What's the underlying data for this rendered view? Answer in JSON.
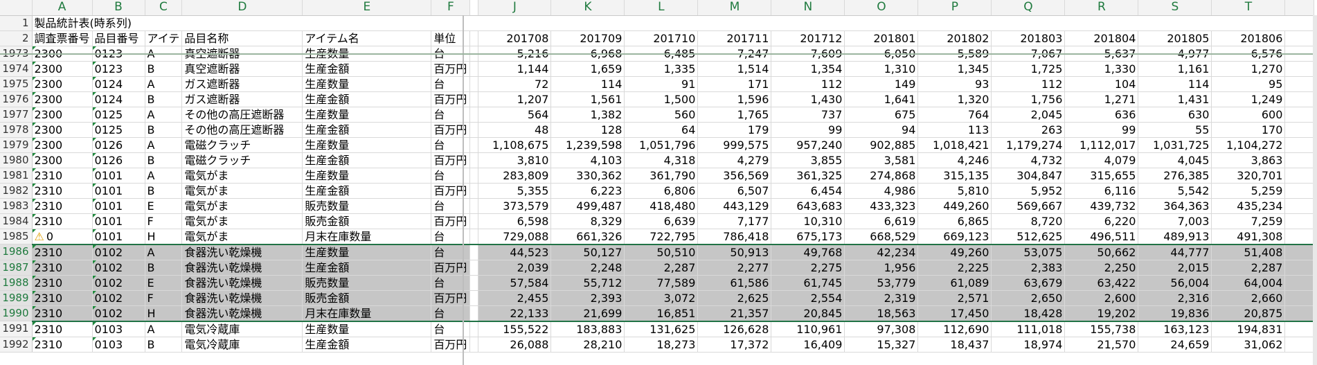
{
  "col_headers": [
    "A",
    "B",
    "C",
    "D",
    "E",
    "F",
    "J",
    "K",
    "L",
    "M",
    "N",
    "O",
    "P",
    "Q",
    "R",
    "S",
    "T"
  ],
  "title_row": {
    "num": "1",
    "text": "製品統計表(時系列)"
  },
  "header_row": {
    "num": "2",
    "cells": [
      "調査票番号",
      "品目番号",
      "アイテ",
      "品目名称",
      "アイテム名",
      "単位",
      "201708",
      "201709",
      "201710",
      "201711",
      "201712",
      "201801",
      "201802",
      "201803",
      "201804",
      "201805",
      "201806"
    ]
  },
  "rows": [
    {
      "num": "1973",
      "a": "2300",
      "b": "0123",
      "c": "A",
      "d": "真空遮断器",
      "e": "生産数量",
      "f": "台",
      "vals": [
        "5,216",
        "6,968",
        "6,485",
        "7,247",
        "7,609",
        "6,050",
        "5,589",
        "7,067",
        "5,637",
        "4,977",
        "6,576"
      ]
    },
    {
      "num": "1974",
      "a": "2300",
      "b": "0123",
      "c": "B",
      "d": "真空遮断器",
      "e": "生産金額",
      "f": "百万円",
      "vals": [
        "1,144",
        "1,659",
        "1,335",
        "1,514",
        "1,354",
        "1,310",
        "1,345",
        "1,725",
        "1,330",
        "1,161",
        "1,270"
      ]
    },
    {
      "num": "1975",
      "a": "2300",
      "b": "0124",
      "c": "A",
      "d": "ガス遮断器",
      "e": "生産数量",
      "f": "台",
      "vals": [
        "72",
        "114",
        "91",
        "171",
        "112",
        "149",
        "93",
        "112",
        "104",
        "114",
        "95"
      ]
    },
    {
      "num": "1976",
      "a": "2300",
      "b": "0124",
      "c": "B",
      "d": "ガス遮断器",
      "e": "生産金額",
      "f": "百万円",
      "vals": [
        "1,207",
        "1,561",
        "1,500",
        "1,596",
        "1,430",
        "1,641",
        "1,320",
        "1,756",
        "1,271",
        "1,431",
        "1,249"
      ]
    },
    {
      "num": "1977",
      "a": "2300",
      "b": "0125",
      "c": "A",
      "d": "その他の高圧遮断器",
      "e": "生産数量",
      "f": "台",
      "vals": [
        "564",
        "1,382",
        "560",
        "1,765",
        "737",
        "675",
        "764",
        "2,045",
        "636",
        "630",
        "600"
      ]
    },
    {
      "num": "1978",
      "a": "2300",
      "b": "0125",
      "c": "B",
      "d": "その他の高圧遮断器",
      "e": "生産金額",
      "f": "百万円",
      "vals": [
        "48",
        "128",
        "64",
        "179",
        "99",
        "94",
        "113",
        "263",
        "99",
        "55",
        "170"
      ]
    },
    {
      "num": "1979",
      "a": "2300",
      "b": "0126",
      "c": "A",
      "d": "電磁クラッチ",
      "e": "生産数量",
      "f": "台",
      "vals": [
        "1,108,675",
        "1,239,598",
        "1,051,796",
        "999,575",
        "957,240",
        "902,885",
        "1,018,421",
        "1,179,274",
        "1,112,017",
        "1,031,725",
        "1,104,272"
      ]
    },
    {
      "num": "1980",
      "a": "2300",
      "b": "0126",
      "c": "B",
      "d": "電磁クラッチ",
      "e": "生産金額",
      "f": "百万円",
      "vals": [
        "3,810",
        "4,103",
        "4,318",
        "4,279",
        "3,855",
        "3,581",
        "4,246",
        "4,732",
        "4,079",
        "4,045",
        "3,863"
      ]
    },
    {
      "num": "1981",
      "a": "2310",
      "b": "0101",
      "c": "A",
      "d": "電気がま",
      "e": "生産数量",
      "f": "台",
      "vals": [
        "283,809",
        "330,362",
        "361,790",
        "356,569",
        "361,325",
        "274,868",
        "315,135",
        "304,847",
        "315,655",
        "276,385",
        "320,701"
      ]
    },
    {
      "num": "1982",
      "a": "2310",
      "b": "0101",
      "c": "B",
      "d": "電気がま",
      "e": "生産金額",
      "f": "百万円",
      "vals": [
        "5,355",
        "6,223",
        "6,806",
        "6,507",
        "6,454",
        "4,986",
        "5,810",
        "5,952",
        "6,116",
        "5,542",
        "5,259"
      ]
    },
    {
      "num": "1983",
      "a": "2310",
      "b": "0101",
      "c": "E",
      "d": "電気がま",
      "e": "販売数量",
      "f": "台",
      "vals": [
        "373,579",
        "499,487",
        "418,480",
        "443,129",
        "643,683",
        "433,323",
        "449,260",
        "569,667",
        "439,732",
        "364,363",
        "435,234"
      ]
    },
    {
      "num": "1984",
      "a": "2310",
      "b": "0101",
      "c": "F",
      "d": "電気がま",
      "e": "販売金額",
      "f": "百万円",
      "vals": [
        "6,598",
        "8,329",
        "6,639",
        "7,177",
        "10,310",
        "6,619",
        "6,865",
        "8,720",
        "6,220",
        "7,003",
        "7,259"
      ]
    },
    {
      "num": "1985",
      "a": "0",
      "b": "0101",
      "c": "H",
      "d": "電気がま",
      "e": "月末在庫数量",
      "f": "台",
      "warn": true,
      "vals": [
        "729,088",
        "661,326",
        "722,795",
        "786,418",
        "675,173",
        "668,529",
        "669,123",
        "512,625",
        "496,511",
        "489,913",
        "491,308"
      ]
    },
    {
      "num": "1986",
      "a": "2310",
      "b": "0102",
      "c": "A",
      "d": "食器洗い乾燥機",
      "e": "生産数量",
      "f": "台",
      "sel": true,
      "vals": [
        "44,523",
        "50,127",
        "50,510",
        "50,913",
        "49,768",
        "42,234",
        "49,260",
        "53,075",
        "50,662",
        "44,777",
        "51,408"
      ]
    },
    {
      "num": "1987",
      "a": "2310",
      "b": "0102",
      "c": "B",
      "d": "食器洗い乾燥機",
      "e": "生産金額",
      "f": "百万円",
      "sel": true,
      "vals": [
        "2,039",
        "2,248",
        "2,287",
        "2,277",
        "2,275",
        "1,956",
        "2,225",
        "2,383",
        "2,250",
        "2,015",
        "2,287"
      ]
    },
    {
      "num": "1988",
      "a": "2310",
      "b": "0102",
      "c": "E",
      "d": "食器洗い乾燥機",
      "e": "販売数量",
      "f": "台",
      "sel": true,
      "vals": [
        "57,584",
        "55,712",
        "77,589",
        "61,586",
        "61,745",
        "53,779",
        "61,089",
        "63,679",
        "63,422",
        "56,004",
        "64,004"
      ]
    },
    {
      "num": "1989",
      "a": "2310",
      "b": "0102",
      "c": "F",
      "d": "食器洗い乾燥機",
      "e": "販売金額",
      "f": "百万円",
      "sel": true,
      "vals": [
        "2,455",
        "2,393",
        "3,072",
        "2,625",
        "2,554",
        "2,319",
        "2,571",
        "2,650",
        "2,600",
        "2,316",
        "2,660"
      ]
    },
    {
      "num": "1990",
      "a": "2310",
      "b": "0102",
      "c": "H",
      "d": "食器洗い乾燥機",
      "e": "月末在庫数量",
      "f": "台",
      "sel": true,
      "vals": [
        "22,133",
        "21,699",
        "16,851",
        "21,357",
        "20,845",
        "18,563",
        "17,450",
        "18,428",
        "19,202",
        "19,836",
        "20,875"
      ]
    },
    {
      "num": "1991",
      "a": "2310",
      "b": "0103",
      "c": "A",
      "d": "電気冷蔵庫",
      "e": "生産数量",
      "f": "台",
      "vals": [
        "155,522",
        "183,883",
        "131,625",
        "126,628",
        "110,961",
        "97,308",
        "112,690",
        "111,018",
        "155,738",
        "163,123",
        "194,831"
      ]
    },
    {
      "num": "1992",
      "a": "2310",
      "b": "0103",
      "c": "B",
      "d": "電気冷蔵庫",
      "e": "生産金額",
      "f": "百万円",
      "vals": [
        "26,088",
        "28,210",
        "18,273",
        "17,372",
        "16,409",
        "15,327",
        "18,437",
        "18,974",
        "21,570",
        "24,659",
        "31,062"
      ]
    }
  ]
}
